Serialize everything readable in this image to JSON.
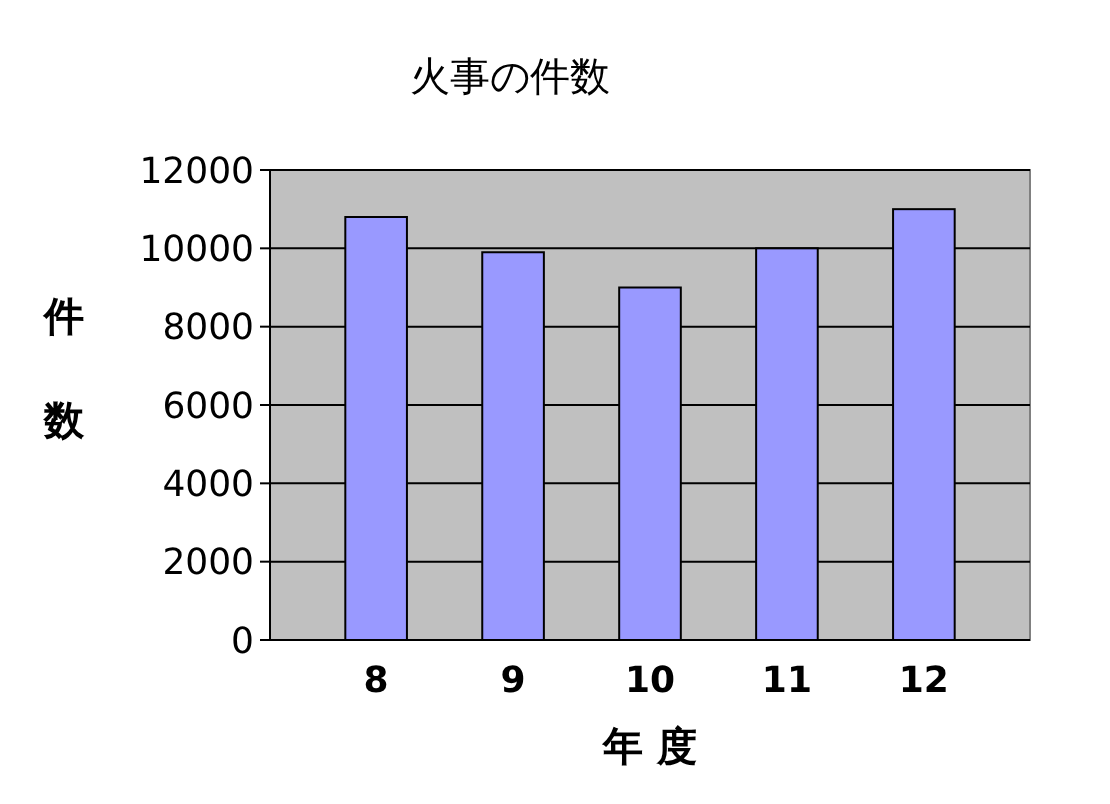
{
  "chart_data": {
    "type": "bar",
    "title": "火事の件数",
    "xlabel": "年 度",
    "ylabel": "件数",
    "categories": [
      "8",
      "9",
      "10",
      "11",
      "12"
    ],
    "values": [
      10800,
      9900,
      9000,
      10000,
      11000
    ],
    "color": "#9999ff",
    "ylim": [
      0,
      12000
    ],
    "yticks": [
      0,
      2000,
      4000,
      6000,
      8000,
      10000,
      12000
    ],
    "grid": "y"
  }
}
